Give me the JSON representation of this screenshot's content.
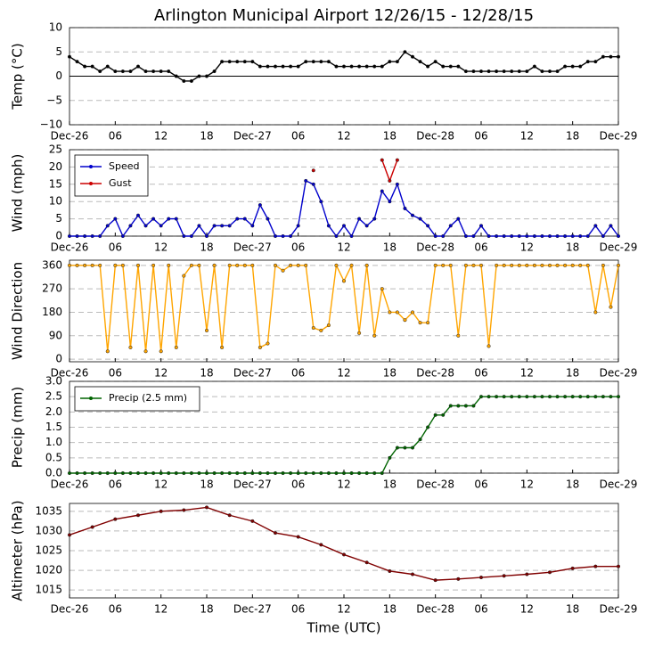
{
  "chart_data": [
    {
      "type": "line",
      "title": "Arlington Municipal Airport 12/26/15 - 12/28/15",
      "ylabel": "Temp (°C)",
      "zero_line": true,
      "grid": true,
      "xlim": [
        0,
        72
      ],
      "xticks": [
        {
          "value": 0,
          "label": "Dec-26"
        },
        {
          "value": 6,
          "label": "06"
        },
        {
          "value": 12,
          "label": "12"
        },
        {
          "value": 18,
          "label": "18"
        },
        {
          "value": 24,
          "label": "Dec-27"
        },
        {
          "value": 30,
          "label": "06"
        },
        {
          "value": 36,
          "label": "12"
        },
        {
          "value": 42,
          "label": "18"
        },
        {
          "value": 48,
          "label": "Dec-28"
        },
        {
          "value": 54,
          "label": "06"
        },
        {
          "value": 60,
          "label": "12"
        },
        {
          "value": 66,
          "label": "18"
        },
        {
          "value": 72,
          "label": "Dec-29"
        }
      ],
      "ylim": [
        -10,
        10
      ],
      "yticks": [
        {
          "value": -10,
          "label": "−10"
        },
        {
          "value": -5,
          "label": "−5"
        },
        0,
        5,
        10
      ],
      "x": [
        0,
        1,
        2,
        3,
        4,
        5,
        6,
        7,
        8,
        9,
        10,
        11,
        12,
        13,
        14,
        15,
        16,
        17,
        18,
        19,
        20,
        21,
        22,
        23,
        24,
        25,
        26,
        27,
        28,
        29,
        30,
        31,
        32,
        33,
        34,
        35,
        36,
        37,
        38,
        39,
        40,
        41,
        42,
        43,
        44,
        45,
        46,
        47,
        48,
        49,
        50,
        51,
        52,
        53,
        54,
        55,
        56,
        57,
        58,
        59,
        60,
        61,
        62,
        63,
        64,
        65,
        66,
        67,
        68,
        69,
        70,
        71,
        72
      ],
      "series": [
        {
          "color": "#000000",
          "values": [
            4,
            3,
            2,
            2,
            1,
            2,
            1,
            1,
            1,
            2,
            1,
            1,
            1,
            1,
            0,
            -1,
            -1,
            0,
            0,
            1,
            3,
            3,
            3,
            3,
            3,
            2,
            2,
            2,
            2,
            2,
            2,
            3,
            3,
            3,
            3,
            2,
            2,
            2,
            2,
            2,
            2,
            2,
            3,
            3,
            5,
            4,
            3,
            2,
            3,
            2,
            2,
            2,
            1,
            1,
            1,
            1,
            1,
            1,
            1,
            1,
            1,
            2,
            1,
            1,
            1,
            2,
            2,
            2,
            3,
            3,
            4,
            4,
            4
          ]
        }
      ]
    },
    {
      "type": "line",
      "ylabel": "Wind (mph)",
      "grid": true,
      "legend": "upper left",
      "xlim": [
        0,
        72
      ],
      "xticks": [
        {
          "value": 0,
          "label": "Dec-26"
        },
        {
          "value": 6,
          "label": "06"
        },
        {
          "value": 12,
          "label": "12"
        },
        {
          "value": 18,
          "label": "18"
        },
        {
          "value": 24,
          "label": "Dec-27"
        },
        {
          "value": 30,
          "label": "06"
        },
        {
          "value": 36,
          "label": "12"
        },
        {
          "value": 42,
          "label": "18"
        },
        {
          "value": 48,
          "label": "Dec-28"
        },
        {
          "value": 54,
          "label": "06"
        },
        {
          "value": 60,
          "label": "12"
        },
        {
          "value": 66,
          "label": "18"
        },
        {
          "value": 72,
          "label": "Dec-29"
        }
      ],
      "ylim": [
        0,
        25
      ],
      "yticks": [
        0,
        5,
        10,
        15,
        20,
        25
      ],
      "x": [
        0,
        1,
        2,
        3,
        4,
        5,
        6,
        7,
        8,
        9,
        10,
        11,
        12,
        13,
        14,
        15,
        16,
        17,
        18,
        19,
        20,
        21,
        22,
        23,
        24,
        25,
        26,
        27,
        28,
        29,
        30,
        31,
        32,
        33,
        34,
        35,
        36,
        37,
        38,
        39,
        40,
        41,
        42,
        43,
        44,
        45,
        46,
        47,
        48,
        49,
        50,
        51,
        52,
        53,
        54,
        55,
        56,
        57,
        58,
        59,
        60,
        61,
        62,
        63,
        64,
        65,
        66,
        67,
        68,
        69,
        70,
        71,
        72
      ],
      "series": [
        {
          "name": "Speed",
          "color": "#0000cc",
          "values": [
            0,
            0,
            0,
            0,
            0,
            3,
            5,
            0,
            3,
            6,
            3,
            5,
            3,
            5,
            5,
            0,
            0,
            3,
            0,
            3,
            3,
            3,
            5,
            5,
            3,
            9,
            5,
            0,
            0,
            0,
            3,
            16,
            15,
            10,
            3,
            0,
            3,
            0,
            5,
            3,
            5,
            13,
            10,
            15,
            8,
            6,
            5,
            3,
            0,
            0,
            3,
            5,
            0,
            0,
            3,
            0,
            0,
            0,
            0,
            0,
            0,
            0,
            0,
            0,
            0,
            0,
            0,
            0,
            0,
            3,
            0,
            3,
            0
          ]
        },
        {
          "name": "Gust",
          "color": "#cc0000",
          "values": [
            null,
            null,
            null,
            null,
            null,
            null,
            null,
            null,
            null,
            null,
            null,
            null,
            null,
            null,
            null,
            null,
            null,
            null,
            null,
            null,
            null,
            null,
            null,
            null,
            null,
            null,
            null,
            null,
            null,
            null,
            null,
            null,
            19,
            null,
            null,
            null,
            null,
            null,
            null,
            null,
            null,
            22,
            16,
            22,
            null,
            null,
            null,
            null,
            null,
            null,
            null,
            null,
            null,
            null,
            null,
            null,
            null,
            null,
            null,
            null,
            null,
            null,
            null,
            null,
            null,
            null,
            null,
            null,
            null,
            null,
            null,
            null,
            null
          ]
        }
      ]
    },
    {
      "type": "line",
      "ylabel": "Wind Direction",
      "grid": true,
      "xlim": [
        0,
        72
      ],
      "xticks": [
        {
          "value": 0,
          "label": "Dec-26"
        },
        {
          "value": 6,
          "label": "06"
        },
        {
          "value": 12,
          "label": "12"
        },
        {
          "value": 18,
          "label": "18"
        },
        {
          "value": 24,
          "label": "Dec-27"
        },
        {
          "value": 30,
          "label": "06"
        },
        {
          "value": 36,
          "label": "12"
        },
        {
          "value": 42,
          "label": "18"
        },
        {
          "value": 48,
          "label": "Dec-28"
        },
        {
          "value": 54,
          "label": "06"
        },
        {
          "value": 60,
          "label": "12"
        },
        {
          "value": 66,
          "label": "18"
        },
        {
          "value": 72,
          "label": "Dec-29"
        }
      ],
      "ylim": [
        -10,
        380
      ],
      "yticks": [
        0,
        90,
        180,
        270,
        360
      ],
      "x": [
        0,
        1,
        2,
        3,
        4,
        5,
        6,
        7,
        8,
        9,
        10,
        11,
        12,
        13,
        14,
        15,
        16,
        17,
        18,
        19,
        20,
        21,
        22,
        23,
        24,
        25,
        26,
        27,
        28,
        29,
        30,
        31,
        32,
        33,
        34,
        35,
        36,
        37,
        38,
        39,
        40,
        41,
        42,
        43,
        44,
        45,
        46,
        47,
        48,
        49,
        50,
        51,
        52,
        53,
        54,
        55,
        56,
        57,
        58,
        59,
        60,
        61,
        62,
        63,
        64,
        65,
        66,
        67,
        68,
        69,
        70,
        71,
        72
      ],
      "series": [
        {
          "color": "#ffa500",
          "values": [
            360,
            360,
            360,
            360,
            360,
            30,
            360,
            360,
            45,
            360,
            30,
            360,
            30,
            360,
            45,
            320,
            360,
            360,
            110,
            360,
            45,
            360,
            360,
            360,
            360,
            45,
            60,
            360,
            340,
            360,
            360,
            360,
            120,
            110,
            130,
            360,
            300,
            360,
            100,
            360,
            90,
            270,
            180,
            180,
            150,
            180,
            140,
            140,
            360,
            360,
            360,
            90,
            360,
            360,
            360,
            50,
            360,
            360,
            360,
            360,
            360,
            360,
            360,
            360,
            360,
            360,
            360,
            360,
            360,
            180,
            360,
            200,
            360
          ]
        }
      ]
    },
    {
      "type": "line",
      "ylabel": "Precip (mm)",
      "grid": true,
      "legend": "upper left",
      "xlim": [
        0,
        72
      ],
      "xticks": [
        {
          "value": 0,
          "label": "Dec-26"
        },
        {
          "value": 6,
          "label": "06"
        },
        {
          "value": 12,
          "label": "12"
        },
        {
          "value": 18,
          "label": "18"
        },
        {
          "value": 24,
          "label": "Dec-27"
        },
        {
          "value": 30,
          "label": "06"
        },
        {
          "value": 36,
          "label": "12"
        },
        {
          "value": 42,
          "label": "18"
        },
        {
          "value": 48,
          "label": "Dec-28"
        },
        {
          "value": 54,
          "label": "06"
        },
        {
          "value": 60,
          "label": "12"
        },
        {
          "value": 66,
          "label": "18"
        },
        {
          "value": 72,
          "label": "Dec-29"
        }
      ],
      "ylim": [
        0,
        3
      ],
      "yticks": [
        {
          "value": 0,
          "label": "0.0"
        },
        {
          "value": 0.5,
          "label": "0.5"
        },
        {
          "value": 1,
          "label": "1.0"
        },
        {
          "value": 1.5,
          "label": "1.5"
        },
        {
          "value": 2,
          "label": "2.0"
        },
        {
          "value": 2.5,
          "label": "2.5"
        },
        {
          "value": 3,
          "label": "3.0"
        }
      ],
      "x": [
        0,
        1,
        2,
        3,
        4,
        5,
        6,
        7,
        8,
        9,
        10,
        11,
        12,
        13,
        14,
        15,
        16,
        17,
        18,
        19,
        20,
        21,
        22,
        23,
        24,
        25,
        26,
        27,
        28,
        29,
        30,
        31,
        32,
        33,
        34,
        35,
        36,
        37,
        38,
        39,
        40,
        41,
        42,
        43,
        44,
        45,
        46,
        47,
        48,
        49,
        50,
        51,
        52,
        53,
        54,
        55,
        56,
        57,
        58,
        59,
        60,
        61,
        62,
        63,
        64,
        65,
        66,
        67,
        68,
        69,
        70,
        71,
        72
      ],
      "series": [
        {
          "name": "Precip (2.5 mm)",
          "color": "#006400",
          "values": [
            0,
            0,
            0,
            0,
            0,
            0,
            0,
            0,
            0,
            0,
            0,
            0,
            0,
            0,
            0,
            0,
            0,
            0,
            0,
            0,
            0,
            0,
            0,
            0,
            0,
            0,
            0,
            0,
            0,
            0,
            0,
            0,
            0,
            0,
            0,
            0,
            0,
            0,
            0,
            0,
            0,
            0,
            0.5,
            0.83,
            0.83,
            0.83,
            1.1,
            1.5,
            1.9,
            1.9,
            2.2,
            2.2,
            2.2,
            2.2,
            2.5,
            2.5,
            2.5,
            2.5,
            2.5,
            2.5,
            2.5,
            2.5,
            2.5,
            2.5,
            2.5,
            2.5,
            2.5,
            2.5,
            2.5,
            2.5,
            2.5,
            2.5,
            2.5
          ]
        }
      ]
    },
    {
      "type": "line",
      "ylabel": "Altimeter (hPa)",
      "xlabel": "Time (UTC)",
      "grid": true,
      "xlim": [
        0,
        72
      ],
      "xticks": [
        {
          "value": 0,
          "label": "Dec-26"
        },
        {
          "value": 6,
          "label": "06"
        },
        {
          "value": 12,
          "label": "12"
        },
        {
          "value": 18,
          "label": "18"
        },
        {
          "value": 24,
          "label": "Dec-27"
        },
        {
          "value": 30,
          "label": "06"
        },
        {
          "value": 36,
          "label": "12"
        },
        {
          "value": 42,
          "label": "18"
        },
        {
          "value": 48,
          "label": "Dec-28"
        },
        {
          "value": 54,
          "label": "06"
        },
        {
          "value": 60,
          "label": "12"
        },
        {
          "value": 66,
          "label": "18"
        },
        {
          "value": 72,
          "label": "Dec-29"
        }
      ],
      "ylim": [
        1013,
        1037
      ],
      "yticks": [
        1015,
        1020,
        1025,
        1030,
        1035
      ],
      "x": [
        0,
        3,
        6,
        9,
        12,
        15,
        18,
        21,
        24,
        27,
        30,
        33,
        36,
        39,
        42,
        45,
        48,
        51,
        54,
        57,
        60,
        63,
        66,
        69,
        72
      ],
      "series": [
        {
          "color": "#800000",
          "values": [
            1029,
            1031,
            1033,
            1034,
            1035,
            1035.3,
            1036,
            1034,
            1032.5,
            1029.5,
            1028.5,
            1026.5,
            1024,
            1022,
            1019.8,
            1019,
            1017.5,
            1017.8,
            1018.2,
            1018.6,
            1019,
            1019.5,
            1020.5,
            1021,
            1021
          ]
        }
      ]
    }
  ]
}
